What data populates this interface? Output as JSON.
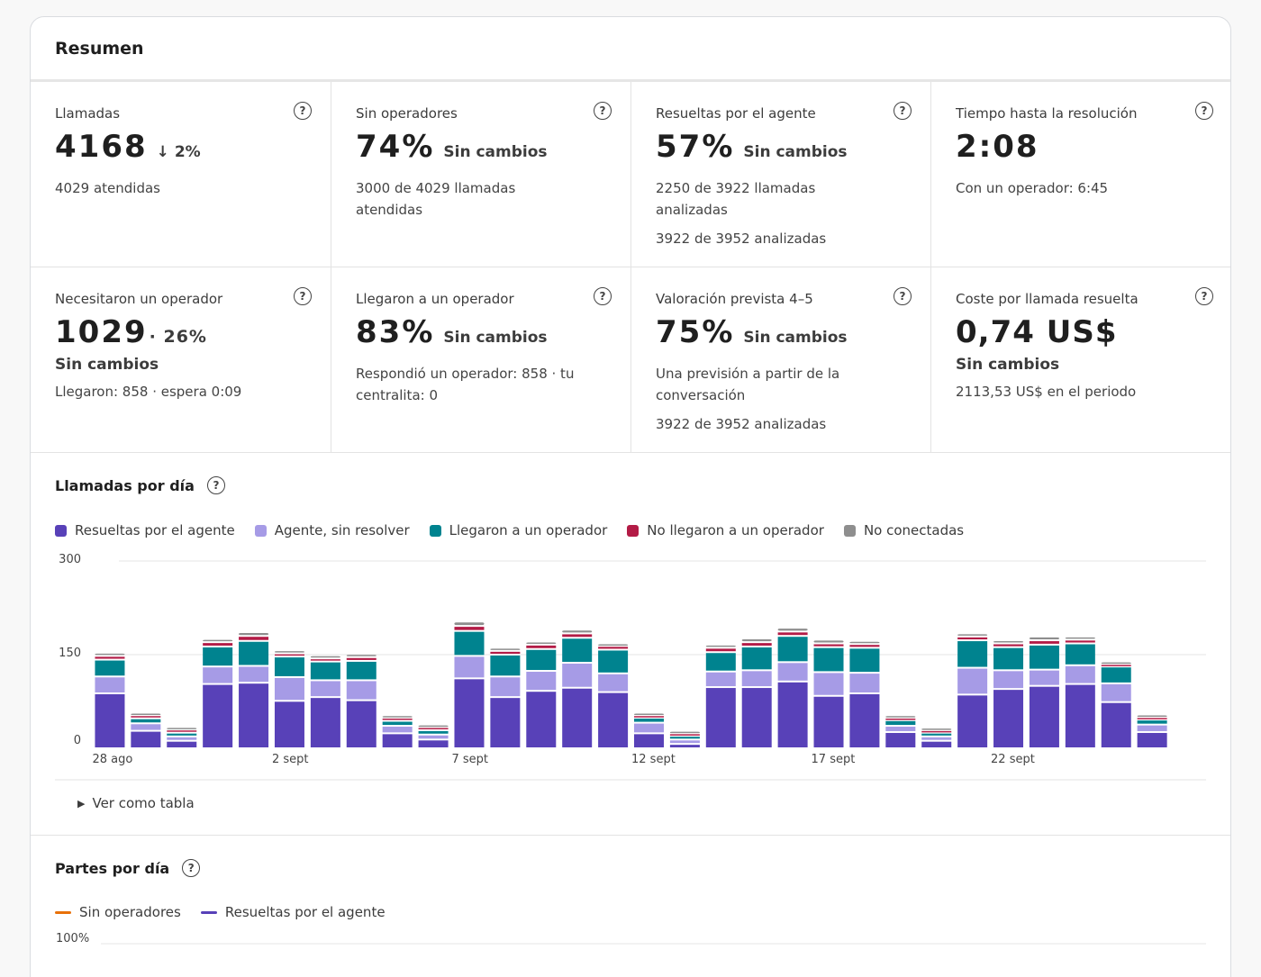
{
  "summary": {
    "title": "Resumen",
    "cards": [
      {
        "label": "Llamadas",
        "value": "4168",
        "delta": "2%",
        "sub": "4029 atendidas"
      },
      {
        "label": "Sin operadores",
        "value": "74%",
        "delta": "Sin cambios",
        "sub": "3000 de 4029 llamadas atendidas"
      },
      {
        "label": "Resueltas por el agente",
        "value": "57%",
        "delta": "Sin cambios",
        "sub": "2250 de 3922 llamadas analizadas",
        "sub2": "3922 de 3952 analizadas"
      },
      {
        "label": "Tiempo hasta la resolución",
        "value": "2:08",
        "sub": "Con un operador: 6:45"
      },
      {
        "label": "Necesitaron un operador",
        "value": "1029",
        "delta": "· 26%",
        "change": "Sin cambios",
        "sub": "Llegaron: 858 · espera 0:09"
      },
      {
        "label": "Llegaron a un operador",
        "value": "83%",
        "delta": "Sin cambios",
        "sub": "Respondió un operador: 858 · tu centralita: 0"
      },
      {
        "label": "Valoración prevista 4–5",
        "value": "75%",
        "delta": "Sin cambios",
        "sub": "Una previsión a partir de la conversación",
        "sub2": "3922 de 3952 analizadas"
      },
      {
        "label": "Coste por llamada resuelta",
        "value": "0,74 US$",
        "change": "Sin cambios",
        "sub": "2113,53 US$ en el periodo"
      }
    ]
  },
  "calls_by_day": {
    "title": "Llamadas por día",
    "toggle_table": "Ver como tabla",
    "colors": {
      "resolved": "#5841b8",
      "unresolved": "#a69be6",
      "reached": "#00838f",
      "not_reached": "#b31b46",
      "not_connected": "#8e8e8e"
    },
    "legend": [
      {
        "name": "Resueltas por el agente",
        "color": "#5841b8"
      },
      {
        "name": "Agente, sin resolver",
        "color": "#a69be6"
      },
      {
        "name": "Llegaron a un operador",
        "color": "#00838f"
      },
      {
        "name": "No llegaron a un operador",
        "color": "#b31b46"
      },
      {
        "name": "No conectadas",
        "color": "#8e8e8e"
      }
    ]
  },
  "chart_data": {
    "type": "bar",
    "stacked": true,
    "y_ticks": [
      "0",
      "150",
      "300"
    ],
    "ylim": [
      0,
      300
    ],
    "grid": true,
    "x_tick_labels": [
      {
        "index": 0,
        "label": "28 ago"
      },
      {
        "index": 5,
        "label": "2 sept"
      },
      {
        "index": 10,
        "label": "7 sept"
      },
      {
        "index": 15,
        "label": "12 sept"
      },
      {
        "index": 20,
        "label": "17 sept"
      },
      {
        "index": 25,
        "label": "22 sept"
      }
    ],
    "categories": [
      "28 ago",
      "29 ago",
      "30 ago",
      "31 ago",
      "1 sept",
      "2 sept",
      "3 sept",
      "4 sept",
      "5 sept",
      "6 sept",
      "7 sept",
      "8 sept",
      "9 sept",
      "10 sept",
      "11 sept",
      "12 sept",
      "13 sept",
      "14 sept",
      "15 sept",
      "16 sept",
      "17 sept",
      "18 sept",
      "19 sept",
      "20 sept",
      "21 sept",
      "22 sept",
      "23 sept",
      "24 sept",
      "25 sept",
      "26 sept",
      "27 sept"
    ],
    "series": [
      {
        "name": "Resueltas por el agente",
        "values": [
          88,
          28,
          12,
          103,
          105,
          76,
          82,
          77,
          24,
          14,
          112,
          82,
          92,
          97,
          90,
          24,
          7,
          98,
          98,
          107,
          84,
          88,
          26,
          12,
          86,
          95,
          100,
          103,
          74,
          26,
          0
        ]
      },
      {
        "name": "Agente, sin resolver",
        "values": [
          27,
          12,
          7,
          28,
          27,
          38,
          27,
          32,
          12,
          8,
          36,
          33,
          32,
          40,
          30,
          17,
          7,
          25,
          27,
          31,
          38,
          33,
          10,
          7,
          43,
          30,
          26,
          30,
          30,
          12,
          0
        ]
      },
      {
        "name": "Llegaron a un operador",
        "values": [
          27,
          8,
          6,
          32,
          40,
          33,
          30,
          31,
          8,
          7,
          40,
          35,
          35,
          40,
          38,
          8,
          6,
          31,
          38,
          42,
          40,
          40,
          9,
          6,
          44,
          37,
          40,
          35,
          27,
          8,
          0
        ]
      },
      {
        "name": "No llegaron a un operador",
        "values": [
          6,
          5,
          5,
          7,
          8,
          5,
          5,
          6,
          5,
          5,
          8,
          6,
          7,
          7,
          6,
          4,
          4,
          7,
          7,
          7,
          6,
          6,
          4,
          4,
          6,
          6,
          7,
          6,
          4,
          4,
          0
        ]
      },
      {
        "name": "No conectadas",
        "values": [
          5,
          4,
          4,
          5,
          6,
          5,
          5,
          5,
          4,
          4,
          7,
          5,
          5,
          6,
          4,
          4,
          4,
          5,
          6,
          6,
          6,
          5,
          4,
          4,
          5,
          5,
          6,
          5,
          4,
          4,
          0
        ]
      }
    ]
  },
  "parts_by_day": {
    "title": "Partes por día",
    "legend": [
      {
        "name": "Sin operadores",
        "color": "#e8710a"
      },
      {
        "name": "Resueltas por el agente",
        "color": "#5841b8"
      }
    ],
    "y_top_label": "100%"
  }
}
